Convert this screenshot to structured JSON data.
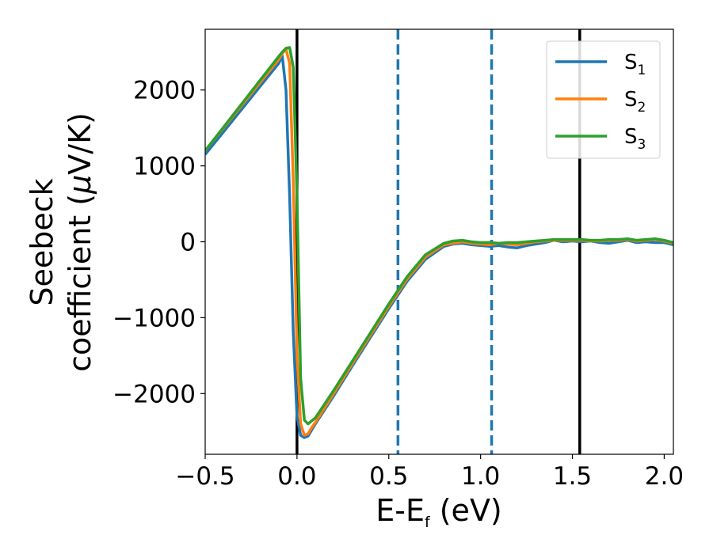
{
  "chart_data": {
    "type": "line",
    "xlabel": {
      "main": "E-E",
      "sub": "f",
      "suffix": " (eV)"
    },
    "ylabel": {
      "line1": "Seebeck",
      "line2": "coefficient  (",
      "mu": "μ",
      "unit": "V/K)"
    },
    "xlim": [
      -0.5,
      2.05
    ],
    "ylim": [
      -2800,
      2800
    ],
    "xticks": [
      {
        "value": -0.5,
        "label": "−0.5"
      },
      {
        "value": 0.0,
        "label": "0.0"
      },
      {
        "value": 0.5,
        "label": "0.5"
      },
      {
        "value": 1.0,
        "label": "1.0"
      },
      {
        "value": 1.5,
        "label": "1.5"
      },
      {
        "value": 2.0,
        "label": "2.0"
      }
    ],
    "yticks": [
      {
        "value": 2000,
        "label": "2000"
      },
      {
        "value": 1000,
        "label": "1000"
      },
      {
        "value": 0,
        "label": "0"
      },
      {
        "value": -1000,
        "label": "−1000"
      },
      {
        "value": -2000,
        "label": "−2000"
      }
    ],
    "vlines": [
      {
        "x": 0.0,
        "color": "#000000",
        "style": "solid"
      },
      {
        "x": 0.55,
        "color": "#1f77b4",
        "style": "dashed"
      },
      {
        "x": 1.06,
        "color": "#1f77b4",
        "style": "dashed"
      },
      {
        "x": 1.54,
        "color": "#000000",
        "style": "solid"
      }
    ],
    "grid": false,
    "legend_position": "top-right",
    "series": [
      {
        "name": "S",
        "sub": "1",
        "color": "#1f77b4",
        "x": [
          -0.5,
          -0.4,
          -0.3,
          -0.2,
          -0.1,
          -0.08,
          -0.06,
          -0.04,
          -0.02,
          0.0,
          0.02,
          0.04,
          0.06,
          0.08,
          0.1,
          0.2,
          0.3,
          0.4,
          0.5,
          0.6,
          0.7,
          0.8,
          0.85,
          0.9,
          0.95,
          1.0,
          1.05,
          1.1,
          1.15,
          1.2,
          1.25,
          1.3,
          1.35,
          1.4,
          1.45,
          1.5,
          1.55,
          1.6,
          1.65,
          1.7,
          1.75,
          1.8,
          1.85,
          1.9,
          1.95,
          2.0,
          2.05
        ],
        "y": [
          1150,
          1450,
          1750,
          2050,
          2350,
          2450,
          2000,
          600,
          -1200,
          -2300,
          -2550,
          -2580,
          -2560,
          -2480,
          -2400,
          -2030,
          -1640,
          -1260,
          -880,
          -520,
          -230,
          -60,
          -30,
          -20,
          -40,
          -50,
          -60,
          -50,
          -70,
          -80,
          -50,
          -30,
          -10,
          20,
          0,
          10,
          0,
          10,
          -10,
          -20,
          0,
          20,
          -10,
          0,
          -10,
          -10,
          -40
        ]
      },
      {
        "name": "S",
        "sub": "2",
        "color": "#ff7f0e",
        "x": [
          -0.5,
          -0.4,
          -0.3,
          -0.2,
          -0.1,
          -0.08,
          -0.06,
          -0.04,
          -0.02,
          0.0,
          0.02,
          0.04,
          0.06,
          0.08,
          0.1,
          0.2,
          0.3,
          0.4,
          0.5,
          0.6,
          0.7,
          0.8,
          0.85,
          0.9,
          0.95,
          1.0,
          1.05,
          1.1,
          1.15,
          1.2,
          1.25,
          1.3,
          1.35,
          1.4,
          1.45,
          1.5,
          1.55,
          1.6,
          1.65,
          1.7,
          1.75,
          1.8,
          1.85,
          1.9,
          1.95,
          2.0,
          2.05
        ],
        "y": [
          1200,
          1500,
          1800,
          2100,
          2400,
          2480,
          2540,
          2350,
          800,
          -1500,
          -2400,
          -2550,
          -2530,
          -2450,
          -2380,
          -2000,
          -1610,
          -1230,
          -850,
          -490,
          -200,
          -40,
          -20,
          0,
          -20,
          -30,
          -40,
          -20,
          -30,
          -40,
          -20,
          0,
          10,
          20,
          20,
          20,
          20,
          10,
          10,
          20,
          20,
          30,
          10,
          20,
          30,
          10,
          -20
        ]
      },
      {
        "name": "S",
        "sub": "3",
        "color": "#2ca02c",
        "x": [
          -0.5,
          -0.4,
          -0.3,
          -0.2,
          -0.1,
          -0.08,
          -0.06,
          -0.04,
          -0.02,
          0.0,
          0.02,
          0.04,
          0.06,
          0.08,
          0.1,
          0.2,
          0.3,
          0.4,
          0.5,
          0.6,
          0.7,
          0.8,
          0.85,
          0.9,
          0.95,
          1.0,
          1.05,
          1.1,
          1.15,
          1.2,
          1.25,
          1.3,
          1.35,
          1.4,
          1.45,
          1.5,
          1.55,
          1.6,
          1.65,
          1.7,
          1.75,
          1.8,
          1.85,
          1.9,
          1.95,
          2.0,
          2.05
        ],
        "y": [
          1200,
          1510,
          1820,
          2130,
          2440,
          2500,
          2550,
          2560,
          2300,
          600,
          -1800,
          -2350,
          -2400,
          -2360,
          -2320,
          -1960,
          -1580,
          -1200,
          -820,
          -460,
          -170,
          -20,
          10,
          20,
          0,
          -10,
          -10,
          -20,
          -10,
          -10,
          0,
          10,
          20,
          30,
          30,
          30,
          30,
          20,
          20,
          30,
          30,
          40,
          20,
          30,
          40,
          20,
          -10
        ]
      }
    ]
  }
}
